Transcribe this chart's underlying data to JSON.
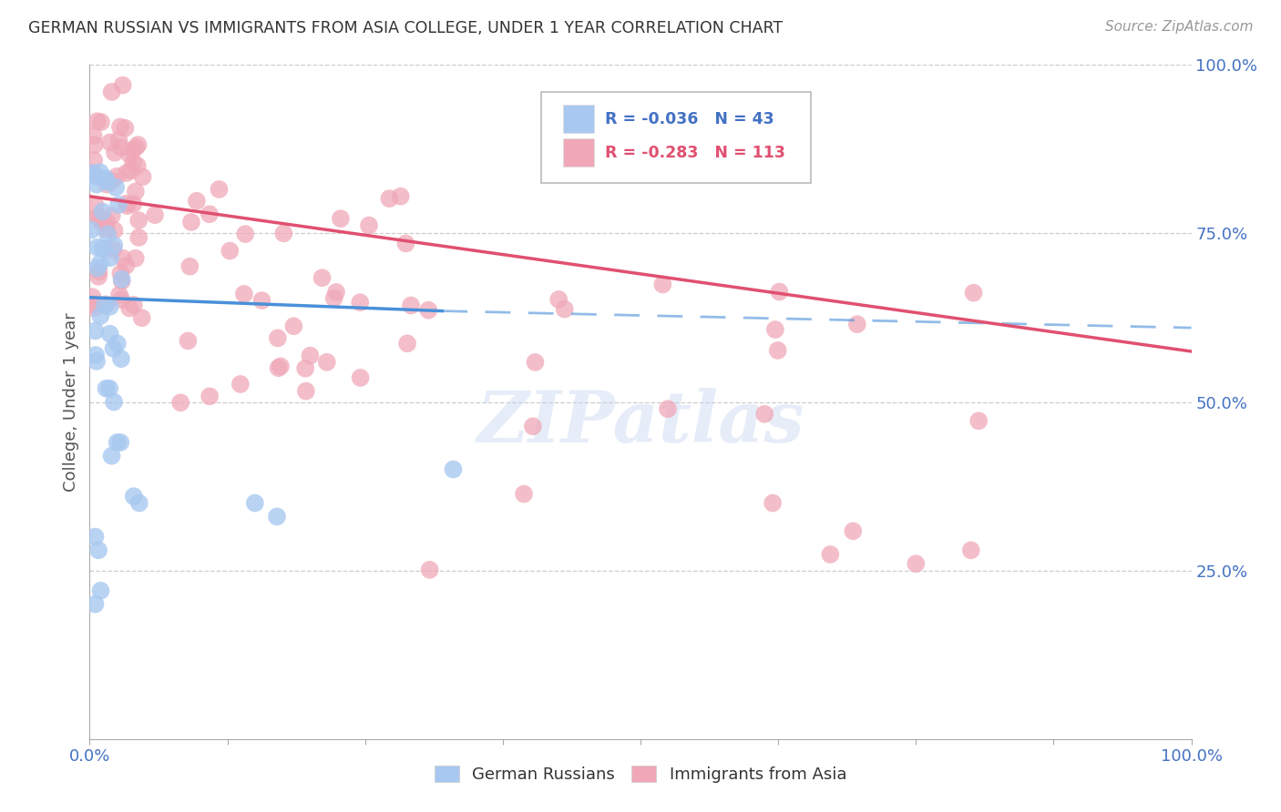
{
  "title": "GERMAN RUSSIAN VS IMMIGRANTS FROM ASIA COLLEGE, UNDER 1 YEAR CORRELATION CHART",
  "source": "Source: ZipAtlas.com",
  "ylabel": "College, Under 1 year",
  "series1_color": "#a8c8f0",
  "series2_color": "#f0a8b8",
  "line1_color": "#4a90d9",
  "line2_color": "#e05070",
  "line1_dash_color": "#90b8e0",
  "watermark": "ZIPatlas",
  "background_color": "#ffffff",
  "legend_r1": "-0.036",
  "legend_n1": "43",
  "legend_r2": "-0.283",
  "legend_n2": "113",
  "legend_label1": "German Russians",
  "legend_label2": "Immigrants from Asia",
  "right_yticks": [
    0.25,
    0.5,
    0.75,
    1.0
  ],
  "right_yticklabels": [
    "25.0%",
    "50.0%",
    "75.0%",
    "100.0%"
  ],
  "grid_color": "#cccccc",
  "tick_color": "#4472c4",
  "title_color": "#333333",
  "source_color": "#999999",
  "ylabel_color": "#555555",
  "xlim": [
    0.0,
    1.0
  ],
  "ylim": [
    0.0,
    1.0
  ],
  "line1_x_solid_end": 0.32,
  "line1_start_y": 0.655,
  "line1_end_y_solid": 0.635,
  "line1_end_y_full": 0.61,
  "line2_start_y": 0.805,
  "line2_end_y": 0.575
}
